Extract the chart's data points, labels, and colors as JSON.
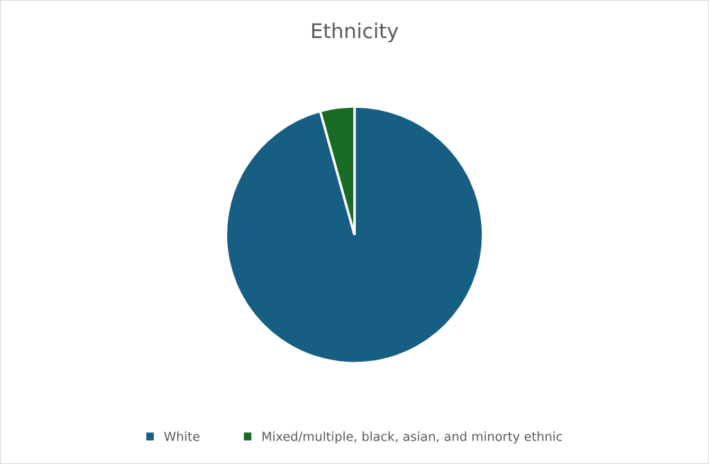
{
  "chart_data": {
    "type": "pie",
    "title": "Ethnicity",
    "categories": [
      "White",
      "Mixed/multiple, black, asian, and minorty ethnic"
    ],
    "values": [
      95.7,
      4.3
    ],
    "colors": [
      "#175f82",
      "#196b24"
    ],
    "legend": "bottom"
  }
}
